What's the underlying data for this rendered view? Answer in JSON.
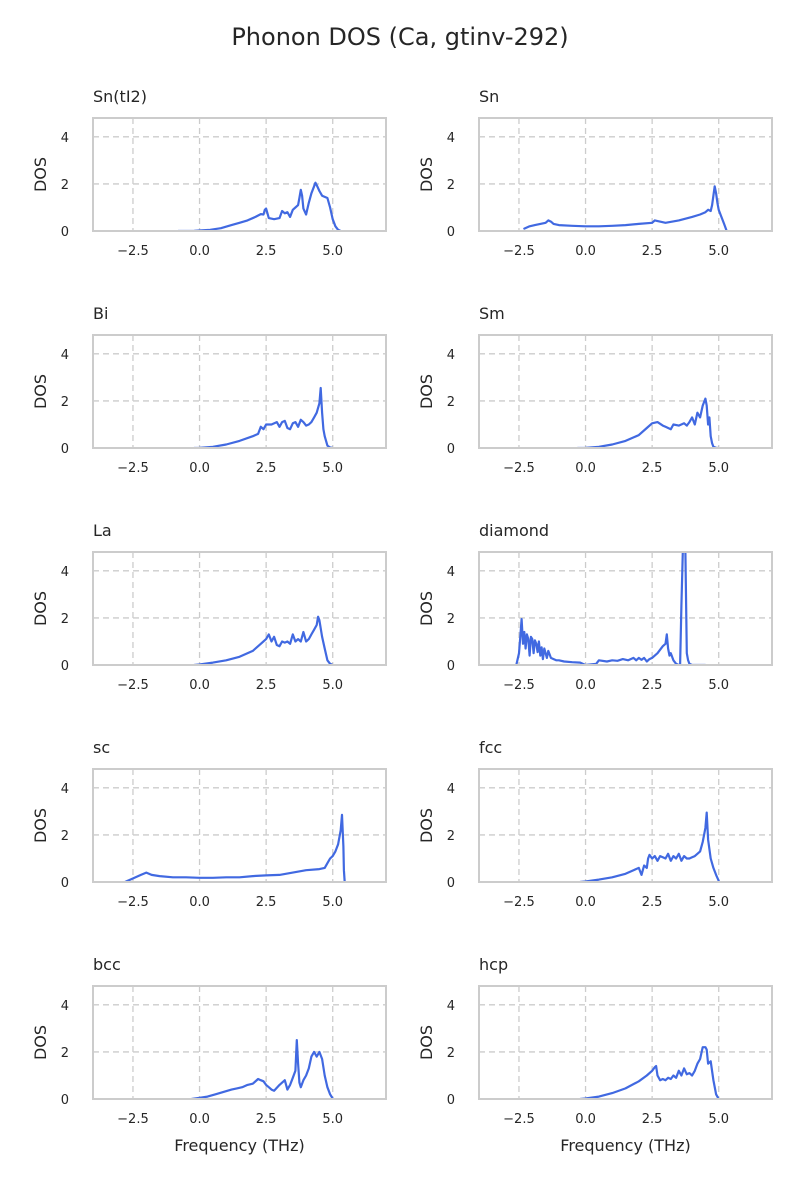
{
  "figure": {
    "title": "Phonon DOS (Ca, gtinv-292)",
    "line_color": "#4169e1",
    "tail_color": "#b0c0ee",
    "grid_color": "#cccccc",
    "frame_color": "#cccccc"
  },
  "chart_data": [
    {
      "type": "line",
      "title": "Sn(tI2)",
      "xlabel": "",
      "ylabel": "DOS",
      "xlim": [
        -4.0,
        7.0
      ],
      "ylim": [
        0,
        4.8
      ],
      "xticks": [
        -2.5,
        0.0,
        2.5,
        5.0
      ],
      "xtick_labels": [
        "−2.5",
        "0.0",
        "2.5",
        "5.0"
      ],
      "yticks": [
        0,
        2,
        4
      ],
      "ytick_labels": [
        "0",
        "2",
        "4"
      ],
      "grid": true,
      "x": [
        -0.8,
        -0.2,
        0.0,
        0.4,
        0.8,
        1.2,
        1.5,
        1.8,
        2.1,
        2.3,
        2.4,
        2.45,
        2.5,
        2.6,
        2.8,
        3.0,
        3.1,
        3.2,
        3.3,
        3.4,
        3.5,
        3.6,
        3.7,
        3.75,
        3.8,
        3.85,
        3.9,
        4.0,
        4.1,
        4.2,
        4.3,
        4.35,
        4.4,
        4.5,
        4.6,
        4.8,
        4.9,
        5.0,
        5.1,
        5.2,
        5.3
      ],
      "y": [
        0.0,
        0.01,
        0.02,
        0.05,
        0.12,
        0.25,
        0.35,
        0.45,
        0.6,
        0.72,
        0.7,
        0.9,
        0.95,
        0.55,
        0.5,
        0.55,
        0.85,
        0.75,
        0.8,
        0.6,
        0.9,
        1.0,
        1.1,
        1.4,
        1.75,
        1.5,
        0.95,
        0.7,
        1.2,
        1.6,
        1.9,
        2.05,
        1.95,
        1.7,
        1.5,
        1.4,
        1.0,
        0.5,
        0.2,
        0.05,
        0.0
      ],
      "tail_x": [
        -1.5,
        -0.8
      ],
      "tail_y": [
        0,
        0
      ]
    },
    {
      "type": "line",
      "title": "Sn",
      "xlabel": "",
      "ylabel": "DOS",
      "xlim": [
        -4.0,
        7.0
      ],
      "ylim": [
        0,
        4.8
      ],
      "xticks": [
        -2.5,
        0.0,
        2.5,
        5.0
      ],
      "xtick_labels": [
        "−2.5",
        "0.0",
        "2.5",
        "5.0"
      ],
      "yticks": [
        0,
        2,
        4
      ],
      "ytick_labels": [
        "0",
        "2",
        "4"
      ],
      "grid": true,
      "x": [
        -2.3,
        -2.1,
        -1.9,
        -1.7,
        -1.5,
        -1.4,
        -1.3,
        -1.2,
        -1.0,
        -0.5,
        0.0,
        0.5,
        1.0,
        1.5,
        2.0,
        2.5,
        2.6,
        3.0,
        3.5,
        4.0,
        4.3,
        4.5,
        4.6,
        4.7,
        4.75,
        4.8,
        4.85,
        4.9,
        4.95,
        5.0,
        5.1,
        5.2,
        5.3
      ],
      "y": [
        0.1,
        0.2,
        0.25,
        0.3,
        0.35,
        0.45,
        0.4,
        0.3,
        0.25,
        0.22,
        0.2,
        0.2,
        0.22,
        0.25,
        0.3,
        0.35,
        0.45,
        0.35,
        0.45,
        0.6,
        0.7,
        0.8,
        0.9,
        0.85,
        1.1,
        1.5,
        1.9,
        1.6,
        1.2,
        0.9,
        0.6,
        0.3,
        0.0
      ],
      "tail_x": [
        -2.5,
        -2.3,
        5.3,
        6.2
      ],
      "tail_y": [
        0,
        0,
        0,
        0
      ]
    },
    {
      "type": "line",
      "title": "Bi",
      "xlabel": "",
      "ylabel": "DOS",
      "xlim": [
        -4.0,
        7.0
      ],
      "ylim": [
        0,
        4.8
      ],
      "xticks": [
        -2.5,
        0.0,
        2.5,
        5.0
      ],
      "xtick_labels": [
        "−2.5",
        "0.0",
        "2.5",
        "5.0"
      ],
      "yticks": [
        0,
        2,
        4
      ],
      "ytick_labels": [
        "0",
        "2",
        "4"
      ],
      "grid": true,
      "x": [
        -0.2,
        0.0,
        0.5,
        1.0,
        1.5,
        2.0,
        2.2,
        2.3,
        2.4,
        2.5,
        2.7,
        2.9,
        3.0,
        3.1,
        3.2,
        3.3,
        3.4,
        3.5,
        3.6,
        3.7,
        3.8,
        3.9,
        4.0,
        4.1,
        4.2,
        4.3,
        4.4,
        4.5,
        4.55,
        4.6,
        4.65,
        4.7,
        4.8,
        4.9,
        5.0
      ],
      "y": [
        0.0,
        0.01,
        0.05,
        0.15,
        0.3,
        0.5,
        0.6,
        0.9,
        0.8,
        1.0,
        1.0,
        1.1,
        0.9,
        1.1,
        1.15,
        0.85,
        0.8,
        1.05,
        1.1,
        0.9,
        1.2,
        1.1,
        0.95,
        1.0,
        1.1,
        1.3,
        1.5,
        1.9,
        2.55,
        1.5,
        0.8,
        0.5,
        0.1,
        0.02,
        0.0
      ],
      "tail_x": [
        5.0,
        5.6
      ],
      "tail_y": [
        0,
        0
      ]
    },
    {
      "type": "line",
      "title": "Sm",
      "xlabel": "",
      "ylabel": "DOS",
      "xlim": [
        -4.0,
        7.0
      ],
      "ylim": [
        0,
        4.8
      ],
      "xticks": [
        -2.5,
        0.0,
        2.5,
        5.0
      ],
      "xtick_labels": [
        "−2.5",
        "0.0",
        "2.5",
        "5.0"
      ],
      "yticks": [
        0,
        2,
        4
      ],
      "ytick_labels": [
        "0",
        "2",
        "4"
      ],
      "grid": true,
      "x": [
        -0.3,
        0.0,
        0.5,
        1.0,
        1.5,
        2.0,
        2.3,
        2.5,
        2.7,
        2.9,
        3.0,
        3.2,
        3.3,
        3.5,
        3.7,
        3.8,
        3.9,
        4.0,
        4.1,
        4.2,
        4.3,
        4.4,
        4.5,
        4.55,
        4.6,
        4.65,
        4.7,
        4.75,
        4.8,
        4.9,
        5.0
      ],
      "y": [
        0.0,
        0.01,
        0.05,
        0.15,
        0.3,
        0.55,
        0.85,
        1.05,
        1.1,
        0.95,
        0.9,
        0.8,
        1.0,
        0.95,
        1.05,
        0.95,
        1.1,
        1.3,
        1.0,
        1.5,
        1.3,
        1.8,
        2.1,
        1.8,
        1.0,
        1.3,
        0.5,
        0.2,
        0.05,
        0.01,
        0.0
      ],
      "tail_x": [
        5.0,
        5.5
      ],
      "tail_y": [
        0,
        0
      ]
    },
    {
      "type": "line",
      "title": "La",
      "xlabel": "",
      "ylabel": "DOS",
      "xlim": [
        -4.0,
        7.0
      ],
      "ylim": [
        0,
        4.8
      ],
      "xticks": [
        -2.5,
        0.0,
        2.5,
        5.0
      ],
      "xtick_labels": [
        "−2.5",
        "0.0",
        "2.5",
        "5.0"
      ],
      "yticks": [
        0,
        2,
        4
      ],
      "ytick_labels": [
        "0",
        "2",
        "4"
      ],
      "grid": true,
      "x": [
        -0.2,
        0.0,
        0.5,
        1.0,
        1.5,
        2.0,
        2.3,
        2.5,
        2.6,
        2.7,
        2.8,
        2.9,
        3.0,
        3.1,
        3.2,
        3.3,
        3.4,
        3.5,
        3.6,
        3.7,
        3.8,
        3.9,
        4.0,
        4.1,
        4.2,
        4.3,
        4.4,
        4.45,
        4.5,
        4.6,
        4.7,
        4.8,
        4.9,
        5.0
      ],
      "y": [
        0.0,
        0.02,
        0.1,
        0.2,
        0.35,
        0.6,
        0.9,
        1.1,
        1.3,
        1.0,
        1.2,
        0.85,
        0.8,
        1.0,
        0.95,
        1.0,
        0.9,
        1.3,
        1.0,
        1.1,
        1.0,
        1.4,
        1.0,
        1.1,
        1.3,
        1.5,
        1.7,
        2.05,
        1.9,
        1.2,
        0.7,
        0.2,
        0.05,
        0.0
      ],
      "tail_x": [
        5.0,
        5.5
      ],
      "tail_y": [
        0,
        0
      ]
    },
    {
      "type": "line",
      "title": "diamond",
      "xlabel": "",
      "ylabel": "DOS",
      "xlim": [
        -4.0,
        7.0
      ],
      "ylim": [
        0,
        4.8
      ],
      "xticks": [
        -2.5,
        0.0,
        2.5,
        5.0
      ],
      "xtick_labels": [
        "−2.5",
        "0.0",
        "2.5",
        "5.0"
      ],
      "yticks": [
        0,
        2,
        4
      ],
      "ytick_labels": [
        "0",
        "2",
        "4"
      ],
      "grid": true,
      "x": [
        -2.6,
        -2.5,
        -2.45,
        -2.4,
        -2.35,
        -2.3,
        -2.25,
        -2.2,
        -2.15,
        -2.1,
        -2.05,
        -2.0,
        -1.95,
        -1.9,
        -1.85,
        -1.8,
        -1.75,
        -1.7,
        -1.65,
        -1.6,
        -1.55,
        -1.5,
        -1.45,
        -1.4,
        -1.3,
        -1.2,
        -1.1,
        -1.0,
        -0.8,
        -0.5,
        -0.2,
        0.0,
        0.4,
        0.5,
        0.8,
        1.0,
        1.2,
        1.4,
        1.6,
        1.8,
        1.9,
        2.0,
        2.1,
        2.2,
        2.3,
        2.4,
        2.5,
        2.7,
        2.9,
        3.0,
        3.05,
        3.1,
        3.15,
        3.2,
        3.3,
        3.4,
        3.5,
        3.55,
        3.6,
        3.65,
        3.7,
        3.75,
        3.8,
        3.85,
        3.9,
        4.0,
        4.5
      ],
      "y": [
        0.0,
        0.5,
        1.2,
        1.95,
        0.9,
        1.4,
        0.7,
        1.3,
        1.1,
        0.4,
        1.2,
        1.1,
        0.5,
        1.05,
        0.9,
        0.55,
        1.0,
        0.4,
        0.75,
        0.25,
        0.7,
        0.5,
        0.3,
        0.6,
        0.3,
        0.25,
        0.2,
        0.2,
        0.15,
        0.12,
        0.1,
        0.0,
        0.05,
        0.2,
        0.15,
        0.2,
        0.18,
        0.25,
        0.2,
        0.3,
        0.2,
        0.3,
        0.22,
        0.3,
        0.15,
        0.25,
        0.3,
        0.5,
        0.8,
        0.9,
        1.3,
        0.7,
        0.4,
        0.5,
        0.2,
        0.05,
        0.0,
        0.0,
        2.5,
        4.8,
        4.8,
        4.8,
        0.5,
        0.2,
        0.05,
        0.0,
        0.0
      ],
      "tail_x": [],
      "tail_y": []
    },
    {
      "type": "line",
      "title": "sc",
      "xlabel": "",
      "ylabel": "DOS",
      "xlim": [
        -4.0,
        7.0
      ],
      "ylim": [
        0,
        4.8
      ],
      "xticks": [
        -2.5,
        0.0,
        2.5,
        5.0
      ],
      "xtick_labels": [
        "−2.5",
        "0.0",
        "2.5",
        "5.0"
      ],
      "yticks": [
        0,
        2,
        4
      ],
      "ytick_labels": [
        "0",
        "2",
        "4"
      ],
      "grid": true,
      "x": [
        -2.8,
        -2.6,
        -2.4,
        -2.2,
        -2.0,
        -1.8,
        -1.5,
        -1.0,
        -0.5,
        0.0,
        0.5,
        1.0,
        1.5,
        2.0,
        2.5,
        3.0,
        3.5,
        4.0,
        4.5,
        4.7,
        4.8,
        4.9,
        5.0,
        5.1,
        5.2,
        5.3,
        5.35,
        5.4,
        5.42,
        5.45
      ],
      "y": [
        0.0,
        0.1,
        0.2,
        0.3,
        0.4,
        0.3,
        0.25,
        0.2,
        0.2,
        0.18,
        0.18,
        0.2,
        0.2,
        0.25,
        0.28,
        0.3,
        0.4,
        0.5,
        0.55,
        0.6,
        0.8,
        1.0,
        1.1,
        1.3,
        1.6,
        2.2,
        2.85,
        1.5,
        0.5,
        0.0
      ],
      "tail_x": [
        -3.6,
        -2.8,
        5.45,
        6.3
      ],
      "tail_y": [
        0,
        0,
        0,
        0
      ]
    },
    {
      "type": "line",
      "title": "fcc",
      "xlabel": "",
      "ylabel": "DOS",
      "xlim": [
        -4.0,
        7.0
      ],
      "ylim": [
        0,
        4.8
      ],
      "xticks": [
        -2.5,
        0.0,
        2.5,
        5.0
      ],
      "xtick_labels": [
        "−2.5",
        "0.0",
        "2.5",
        "5.0"
      ],
      "yticks": [
        0,
        2,
        4
      ],
      "ytick_labels": [
        "0",
        "2",
        "4"
      ],
      "grid": true,
      "x": [
        -0.2,
        0.0,
        0.5,
        1.0,
        1.5,
        1.8,
        2.0,
        2.1,
        2.2,
        2.3,
        2.35,
        2.4,
        2.5,
        2.6,
        2.7,
        2.8,
        2.9,
        3.0,
        3.1,
        3.2,
        3.3,
        3.4,
        3.5,
        3.6,
        3.7,
        3.8,
        3.9,
        4.0,
        4.1,
        4.2,
        4.3,
        4.4,
        4.5,
        4.55,
        4.6,
        4.7,
        4.8,
        4.9,
        5.0
      ],
      "y": [
        0.0,
        0.02,
        0.1,
        0.2,
        0.35,
        0.5,
        0.6,
        0.3,
        0.7,
        0.6,
        1.0,
        1.15,
        1.0,
        1.1,
        0.9,
        1.1,
        1.05,
        1.0,
        1.2,
        0.9,
        1.1,
        1.0,
        1.2,
        0.9,
        1.1,
        1.0,
        1.0,
        1.05,
        1.1,
        1.2,
        1.3,
        1.7,
        2.3,
        2.95,
        1.8,
        1.0,
        0.6,
        0.3,
        0.05
      ],
      "tail_x": [],
      "tail_y": []
    },
    {
      "type": "line",
      "title": "bcc",
      "xlabel": "Frequency (THz)",
      "ylabel": "DOS",
      "xlim": [
        -4.0,
        7.0
      ],
      "ylim": [
        0,
        4.8
      ],
      "xticks": [
        -2.5,
        0.0,
        2.5,
        5.0
      ],
      "xtick_labels": [
        "−2.5",
        "0.0",
        "2.5",
        "5.0"
      ],
      "yticks": [
        0,
        2,
        4
      ],
      "ytick_labels": [
        "0",
        "2",
        "4"
      ],
      "grid": true,
      "x": [
        -0.3,
        0.0,
        0.3,
        0.6,
        0.9,
        1.2,
        1.4,
        1.6,
        1.8,
        2.0,
        2.2,
        2.3,
        2.4,
        2.5,
        2.6,
        2.7,
        2.8,
        3.0,
        3.2,
        3.3,
        3.4,
        3.5,
        3.6,
        3.65,
        3.7,
        3.75,
        3.8,
        3.9,
        4.0,
        4.1,
        4.2,
        4.3,
        4.4,
        4.5,
        4.6,
        4.7,
        4.8,
        4.9,
        5.0
      ],
      "y": [
        0.0,
        0.05,
        0.1,
        0.2,
        0.3,
        0.4,
        0.45,
        0.5,
        0.6,
        0.65,
        0.85,
        0.8,
        0.75,
        0.6,
        0.5,
        0.4,
        0.35,
        0.6,
        0.8,
        0.4,
        0.6,
        0.9,
        1.2,
        2.5,
        1.5,
        0.7,
        0.5,
        0.8,
        1.0,
        1.3,
        1.8,
        2.0,
        1.8,
        2.0,
        1.7,
        1.0,
        0.5,
        0.2,
        0.02
      ],
      "tail_x": [
        5.0,
        5.6
      ],
      "tail_y": [
        0,
        0
      ]
    },
    {
      "type": "line",
      "title": "hcp",
      "xlabel": "Frequency (THz)",
      "ylabel": "DOS",
      "xlim": [
        -4.0,
        7.0
      ],
      "ylim": [
        0,
        4.8
      ],
      "xticks": [
        -2.5,
        0.0,
        2.5,
        5.0
      ],
      "xtick_labels": [
        "−2.5",
        "0.0",
        "2.5",
        "5.0"
      ],
      "yticks": [
        0,
        2,
        4
      ],
      "ytick_labels": [
        "0",
        "2",
        "4"
      ],
      "grid": true,
      "x": [
        -0.2,
        0.0,
        0.5,
        1.0,
        1.5,
        2.0,
        2.3,
        2.5,
        2.6,
        2.65,
        2.7,
        2.8,
        2.9,
        3.0,
        3.1,
        3.2,
        3.3,
        3.4,
        3.5,
        3.6,
        3.7,
        3.8,
        3.9,
        4.0,
        4.1,
        4.2,
        4.3,
        4.4,
        4.5,
        4.55,
        4.6,
        4.7,
        4.8,
        4.9,
        5.0
      ],
      "y": [
        0.0,
        0.02,
        0.1,
        0.25,
        0.45,
        0.75,
        1.0,
        1.2,
        1.35,
        1.4,
        1.0,
        0.8,
        0.85,
        0.8,
        0.9,
        0.85,
        1.0,
        0.9,
        1.2,
        1.0,
        1.3,
        1.05,
        1.1,
        1.0,
        1.2,
        1.5,
        1.7,
        2.2,
        2.2,
        2.1,
        1.5,
        1.6,
        0.8,
        0.2,
        0.0
      ],
      "tail_x": [
        5.0,
        5.6
      ],
      "tail_y": [
        0,
        0
      ]
    }
  ]
}
